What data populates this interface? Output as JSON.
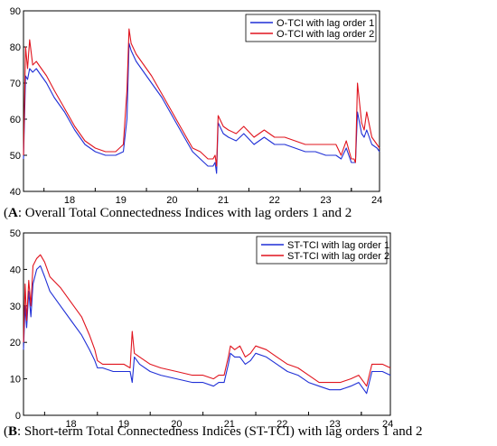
{
  "captions": {
    "a_label": "A",
    "a_text": ": Overall Total Connectedness Indices with lag orders 1 and 2",
    "b_label": "B",
    "b_text": ": Short-term Total Connectedness Indices (ST-TCI) with lag orders 1 and 2"
  },
  "chart_data": [
    {
      "type": "line",
      "panel": "A",
      "title": "",
      "xlabel": "",
      "ylabel": "",
      "xlim": [
        2017.6,
        2024.55
      ],
      "ylim": [
        40,
        90
      ],
      "yticks": [
        40,
        50,
        60,
        70,
        80,
        90
      ],
      "xticks": [
        18,
        19,
        20,
        21,
        22,
        23,
        24
      ],
      "grid": false,
      "legend": "top-right",
      "colors": {
        "lag1": "#1f2fd6",
        "lag2": "#e0141e"
      },
      "x": [
        2017.6,
        2017.64,
        2017.68,
        2017.72,
        2017.78,
        2017.85,
        2017.95,
        2018.05,
        2018.2,
        2018.4,
        2018.6,
        2018.8,
        2019.0,
        2019.2,
        2019.4,
        2019.55,
        2019.62,
        2019.66,
        2019.7,
        2019.8,
        2019.95,
        2020.1,
        2020.3,
        2020.5,
        2020.7,
        2020.9,
        2021.05,
        2021.2,
        2021.3,
        2021.34,
        2021.37,
        2021.4,
        2021.5,
        2021.6,
        2021.75,
        2021.9,
        2022.1,
        2022.3,
        2022.5,
        2022.7,
        2022.9,
        2023.1,
        2023.3,
        2023.5,
        2023.7,
        2023.8,
        2023.9,
        2024.0,
        2024.05,
        2024.08,
        2024.12,
        2024.2,
        2024.25,
        2024.3,
        2024.4,
        2024.5,
        2024.55
      ],
      "series": [
        {
          "name": "O-TCI with lag order 1",
          "values": [
            49,
            72,
            71,
            74,
            73,
            74,
            72,
            70,
            66,
            62,
            57,
            53,
            51,
            50,
            50,
            51,
            60,
            81,
            79,
            76,
            73,
            70,
            66,
            61,
            56,
            51,
            49,
            47,
            47,
            48,
            45,
            59,
            56,
            55,
            54,
            56,
            53,
            55,
            53,
            53,
            52,
            51,
            51,
            50,
            50,
            49,
            52,
            48,
            48,
            48,
            62,
            56,
            55,
            57,
            53,
            52,
            51
          ]
        },
        {
          "name": "O-TCI with lag order 2",
          "values": [
            50,
            80,
            74,
            82,
            75,
            76,
            74,
            72,
            68,
            63,
            58,
            54,
            52,
            51,
            51,
            53,
            68,
            85,
            81,
            78,
            75,
            72,
            67,
            62,
            57,
            52,
            51,
            49,
            49,
            50,
            47,
            61,
            58,
            57,
            56,
            58,
            55,
            57,
            55,
            55,
            54,
            53,
            53,
            53,
            53,
            50,
            54,
            49,
            49,
            48,
            70,
            59,
            57,
            62,
            55,
            53,
            52
          ]
        }
      ]
    },
    {
      "type": "line",
      "panel": "B",
      "title": "",
      "xlabel": "",
      "ylabel": "",
      "xlim": [
        2017.6,
        2024.55
      ],
      "ylim": [
        0,
        50
      ],
      "yticks": [
        0,
        10,
        20,
        30,
        40,
        50
      ],
      "xticks": [
        18,
        19,
        20,
        21,
        22,
        23,
        24
      ],
      "grid": false,
      "legend": "top-right",
      "colors": {
        "lag1": "#1f2fd6",
        "lag2": "#e0141e"
      },
      "x": [
        2017.6,
        2017.63,
        2017.66,
        2017.7,
        2017.74,
        2017.78,
        2017.85,
        2017.92,
        2018.0,
        2018.1,
        2018.3,
        2018.5,
        2018.7,
        2018.85,
        2018.95,
        2019.0,
        2019.1,
        2019.3,
        2019.5,
        2019.62,
        2019.66,
        2019.7,
        2019.8,
        2020.0,
        2020.2,
        2020.5,
        2020.8,
        2021.0,
        2021.2,
        2021.3,
        2021.4,
        2021.48,
        2021.52,
        2021.6,
        2021.7,
        2021.8,
        2021.9,
        2022.0,
        2022.2,
        2022.4,
        2022.6,
        2022.8,
        2023.0,
        2023.2,
        2023.4,
        2023.6,
        2023.8,
        2023.95,
        2024.05,
        2024.1,
        2024.2,
        2024.4,
        2024.55
      ],
      "series": [
        {
          "name": "ST-TCI with lag order 1",
          "values": [
            18,
            30,
            24,
            34,
            27,
            36,
            40,
            41,
            38,
            34,
            30,
            26,
            22,
            18,
            15,
            13,
            13,
            12,
            12,
            12,
            9,
            16,
            14,
            12,
            11,
            10,
            9,
            9,
            8,
            9,
            9,
            14,
            17,
            16,
            16,
            14,
            15,
            17,
            16,
            14,
            12,
            11,
            9,
            8,
            7,
            7,
            8,
            9,
            7,
            6,
            12,
            12,
            11
          ]
        },
        {
          "name": "ST-TCI with lag order 2",
          "values": [
            20,
            36,
            26,
            37,
            30,
            41,
            43,
            44,
            42,
            38,
            35,
            31,
            27,
            22,
            18,
            15,
            14,
            14,
            14,
            13,
            23,
            17,
            16,
            14,
            13,
            12,
            11,
            11,
            10,
            11,
            11,
            16,
            19,
            18,
            19,
            16,
            17,
            19,
            18,
            16,
            14,
            13,
            11,
            9,
            9,
            9,
            10,
            11,
            9,
            8,
            14,
            14,
            13
          ]
        }
      ]
    }
  ]
}
